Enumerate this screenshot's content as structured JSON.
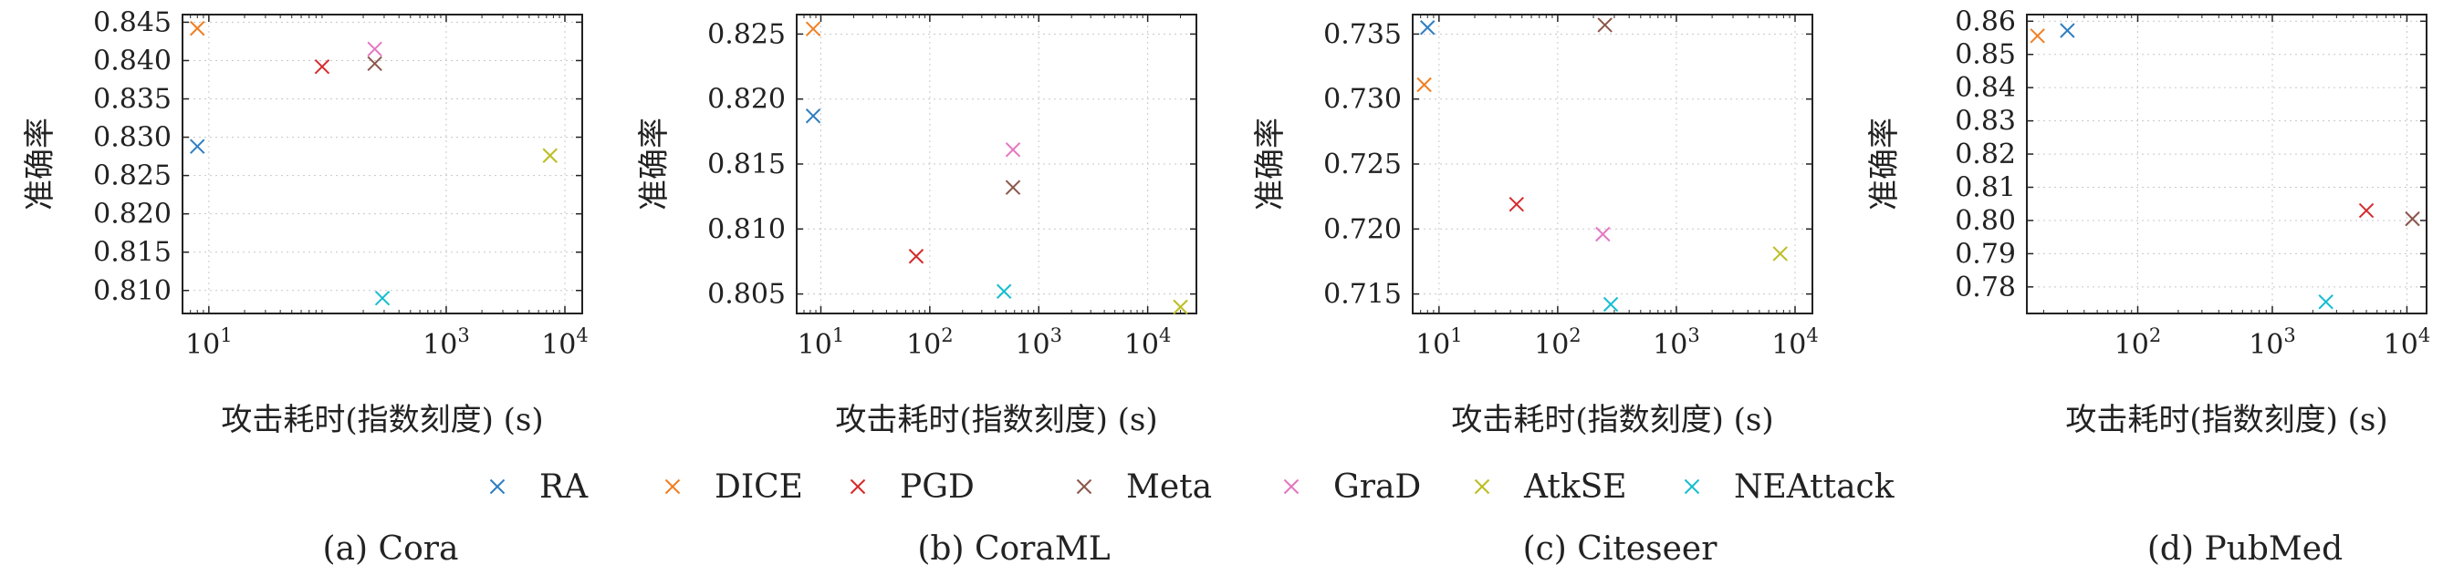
{
  "legend": [
    {
      "name": "RA",
      "color": "#2f7ec2"
    },
    {
      "name": "DICE",
      "color": "#f07f22"
    },
    {
      "name": "PGD",
      "color": "#d62a2a"
    },
    {
      "name": "Meta",
      "color": "#8c564b"
    },
    {
      "name": "GraD",
      "color": "#e377c2"
    },
    {
      "name": "AtkSE",
      "color": "#bcbd22"
    },
    {
      "name": "NEAttack",
      "color": "#17becf"
    }
  ],
  "chart_data": [
    {
      "type": "scatter",
      "caption": "(a) Cora",
      "xlabel": "攻击耗时(指数刻度) (s)",
      "ylabel": "准确率",
      "xscale": "log",
      "xlim": [
        6,
        14000
      ],
      "ylim": [
        0.807,
        0.846
      ],
      "xticks": [
        {
          "v": 10,
          "t": "10"
        },
        {
          "v": 1000,
          "t": "10"
        },
        {
          "v": 10000,
          "t": "10"
        }
      ],
      "xtick_exponents": [
        "1",
        "3",
        "4"
      ],
      "yticks": [
        0.845,
        0.84,
        0.835,
        0.83,
        0.825,
        0.82,
        0.815,
        0.81
      ],
      "ytick_labels": [
        "0.845",
        "0.840",
        "0.835",
        "0.830",
        "0.825",
        "0.820",
        "0.815",
        "0.810"
      ],
      "grid": true,
      "points": [
        {
          "series": "RA",
          "x": 8,
          "y": 0.8288
        },
        {
          "series": "DICE",
          "x": 8,
          "y": 0.8442
        },
        {
          "series": "PGD",
          "x": 90,
          "y": 0.8392
        },
        {
          "series": "Meta",
          "x": 250,
          "y": 0.8396
        },
        {
          "series": "GraD",
          "x": 250,
          "y": 0.8415
        },
        {
          "series": "AtkSE",
          "x": 7500,
          "y": 0.8276
        },
        {
          "series": "NEAttack",
          "x": 290,
          "y": 0.809
        }
      ]
    },
    {
      "type": "scatter",
      "caption": "(b) CoraML",
      "xlabel": "攻击耗时(指数刻度) (s)",
      "ylabel": "准确率",
      "xscale": "log",
      "xlim": [
        6,
        28000
      ],
      "ylim": [
        0.8035,
        0.8265
      ],
      "xticks": [
        {
          "v": 10,
          "t": "10"
        },
        {
          "v": 100,
          "t": "10"
        },
        {
          "v": 1000,
          "t": "10"
        },
        {
          "v": 10000,
          "t": "10"
        }
      ],
      "xtick_exponents": [
        "1",
        "2",
        "3",
        "4"
      ],
      "yticks": [
        0.825,
        0.82,
        0.815,
        0.81,
        0.805
      ],
      "ytick_labels": [
        "0.825",
        "0.820",
        "0.815",
        "0.810",
        "0.805"
      ],
      "grid": true,
      "points": [
        {
          "series": "RA",
          "x": 8.5,
          "y": 0.8187
        },
        {
          "series": "DICE",
          "x": 8.5,
          "y": 0.8254
        },
        {
          "series": "PGD",
          "x": 75,
          "y": 0.8079
        },
        {
          "series": "Meta",
          "x": 580,
          "y": 0.8132
        },
        {
          "series": "GraD",
          "x": 580,
          "y": 0.8161
        },
        {
          "series": "AtkSE",
          "x": 20000,
          "y": 0.804
        },
        {
          "series": "NEAttack",
          "x": 480,
          "y": 0.8052
        }
      ]
    },
    {
      "type": "scatter",
      "caption": "(c) Citeseer",
      "xlabel": "攻击耗时(指数刻度) (s)",
      "ylabel": "准确率",
      "xscale": "log",
      "xlim": [
        6,
        14000
      ],
      "ylim": [
        0.7135,
        0.7365
      ],
      "xticks": [
        {
          "v": 10,
          "t": "10"
        },
        {
          "v": 100,
          "t": "10"
        },
        {
          "v": 1000,
          "t": "10"
        },
        {
          "v": 10000,
          "t": "10"
        }
      ],
      "xtick_exponents": [
        "1",
        "2",
        "3",
        "4"
      ],
      "yticks": [
        0.735,
        0.73,
        0.725,
        0.72,
        0.715
      ],
      "ytick_labels": [
        "0.735",
        "0.730",
        "0.725",
        "0.720",
        "0.715"
      ],
      "grid": true,
      "points": [
        {
          "series": "RA",
          "x": 8,
          "y": 0.7355
        },
        {
          "series": "DICE",
          "x": 7.5,
          "y": 0.7311
        },
        {
          "series": "PGD",
          "x": 45,
          "y": 0.7219
        },
        {
          "series": "Meta",
          "x": 250,
          "y": 0.7357
        },
        {
          "series": "GraD",
          "x": 240,
          "y": 0.7196
        },
        {
          "series": "AtkSE",
          "x": 7500,
          "y": 0.7181
        },
        {
          "series": "NEAttack",
          "x": 280,
          "y": 0.7142
        }
      ]
    },
    {
      "type": "scatter",
      "caption": "(d) PubMed",
      "xlabel": "攻击耗时(指数刻度) (s)",
      "ylabel": "准确率",
      "xscale": "log",
      "xlim": [
        15,
        14000
      ],
      "ylim": [
        0.772,
        0.862
      ],
      "xticks": [
        {
          "v": 100,
          "t": "10"
        },
        {
          "v": 1000,
          "t": "10"
        },
        {
          "v": 10000,
          "t": "10"
        }
      ],
      "xtick_exponents": [
        "2",
        "3",
        "4"
      ],
      "yticks": [
        0.86,
        0.85,
        0.84,
        0.83,
        0.82,
        0.81,
        0.8,
        0.79,
        0.78
      ],
      "ytick_labels": [
        "0.86",
        "0.85",
        "0.84",
        "0.83",
        "0.82",
        "0.81",
        "0.80",
        "0.79",
        "0.78"
      ],
      "grid": true,
      "points": [
        {
          "series": "RA",
          "x": 30,
          "y": 0.8572
        },
        {
          "series": "DICE",
          "x": 18,
          "y": 0.8556
        },
        {
          "series": "PGD",
          "x": 5000,
          "y": 0.803
        },
        {
          "series": "Meta",
          "x": 11000,
          "y": 0.8005
        },
        {
          "series": "NEAttack",
          "x": 2500,
          "y": 0.7755
        }
      ]
    }
  ]
}
